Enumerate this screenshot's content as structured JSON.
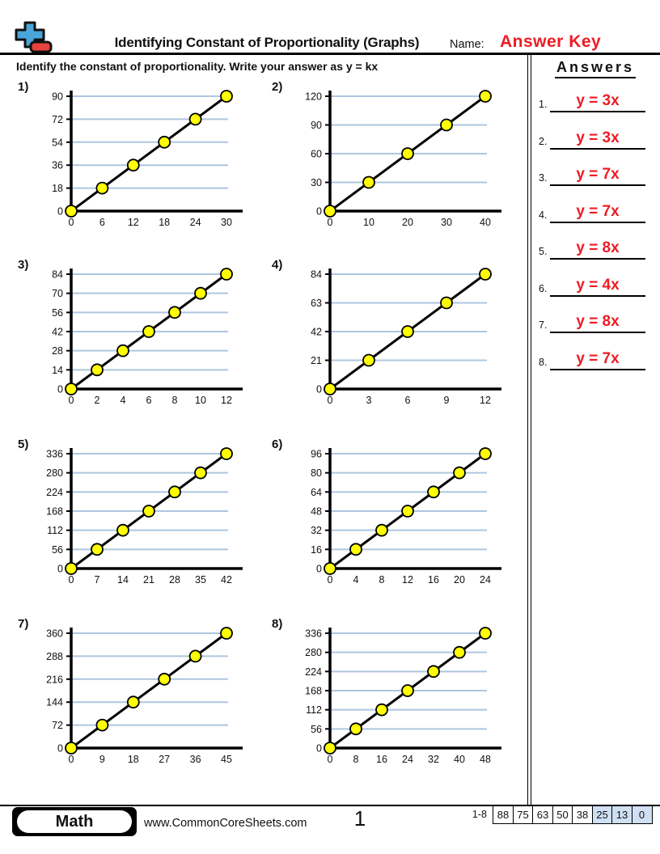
{
  "header": {
    "title": "Identifying Constant of Proportionality (Graphs)",
    "name_label": "Name:",
    "name_value": "Answer Key",
    "instruction": "Identify the constant of proportionality. Write your answer as y = kx"
  },
  "answers_panel": {
    "title": "Answers",
    "items": [
      {
        "num": "1.",
        "value": "y = 3x"
      },
      {
        "num": "2.",
        "value": "y = 3x"
      },
      {
        "num": "3.",
        "value": "y = 7x"
      },
      {
        "num": "4.",
        "value": "y = 7x"
      },
      {
        "num": "5.",
        "value": "y = 8x"
      },
      {
        "num": "6.",
        "value": "y = 4x"
      },
      {
        "num": "7.",
        "value": "y = 8x"
      },
      {
        "num": "8.",
        "value": "y = 7x"
      }
    ]
  },
  "chart_data": [
    {
      "type": "line",
      "label": "1)",
      "k": 3,
      "answer": "y = 3x",
      "x": [
        0,
        6,
        12,
        18,
        24,
        30
      ],
      "y": [
        0,
        18,
        36,
        54,
        72,
        90
      ],
      "x_ticks": [
        0,
        6,
        12,
        18,
        24,
        30
      ],
      "y_ticks": [
        0,
        18,
        36,
        54,
        72,
        90
      ],
      "xlim": [
        0,
        30
      ],
      "ylim": [
        0,
        90
      ],
      "grid": "horizontal",
      "legend": "none",
      "title": "",
      "xlabel": "",
      "ylabel": ""
    },
    {
      "type": "line",
      "label": "2)",
      "k": 3,
      "answer": "y = 3x",
      "x": [
        0,
        10,
        20,
        30,
        40
      ],
      "y": [
        0,
        30,
        60,
        90,
        120
      ],
      "x_ticks": [
        0,
        10,
        20,
        30,
        40
      ],
      "y_ticks": [
        0,
        30,
        60,
        90,
        120
      ],
      "xlim": [
        0,
        40
      ],
      "ylim": [
        0,
        120
      ],
      "grid": "horizontal",
      "legend": "none",
      "title": "",
      "xlabel": "",
      "ylabel": ""
    },
    {
      "type": "line",
      "label": "3)",
      "k": 7,
      "answer": "y = 7x",
      "x": [
        0,
        2,
        4,
        6,
        8,
        10,
        12
      ],
      "y": [
        0,
        14,
        28,
        42,
        56,
        70,
        84
      ],
      "x_ticks": [
        0,
        2,
        4,
        6,
        8,
        10,
        12
      ],
      "y_ticks": [
        0,
        14,
        28,
        42,
        56,
        70,
        84
      ],
      "xlim": [
        0,
        12
      ],
      "ylim": [
        0,
        84
      ],
      "grid": "horizontal",
      "legend": "none",
      "title": "",
      "xlabel": "",
      "ylabel": ""
    },
    {
      "type": "line",
      "label": "4)",
      "k": 7,
      "answer": "y = 7x",
      "x": [
        0,
        3,
        6,
        9,
        12
      ],
      "y": [
        0,
        21,
        42,
        63,
        84
      ],
      "x_ticks": [
        0,
        3,
        6,
        9,
        12
      ],
      "y_ticks": [
        0,
        21,
        42,
        63,
        84
      ],
      "xlim": [
        0,
        12
      ],
      "ylim": [
        0,
        84
      ],
      "grid": "horizontal",
      "legend": "none",
      "title": "",
      "xlabel": "",
      "ylabel": ""
    },
    {
      "type": "line",
      "label": "5)",
      "k": 8,
      "answer": "y = 8x",
      "x": [
        0,
        7,
        14,
        21,
        28,
        35,
        42
      ],
      "y": [
        0,
        56,
        112,
        168,
        224,
        280,
        336
      ],
      "x_ticks": [
        0,
        7,
        14,
        21,
        28,
        35,
        42
      ],
      "y_ticks": [
        0,
        56,
        112,
        168,
        224,
        280,
        336
      ],
      "xlim": [
        0,
        42
      ],
      "ylim": [
        0,
        336
      ],
      "grid": "horizontal",
      "legend": "none",
      "title": "",
      "xlabel": "",
      "ylabel": ""
    },
    {
      "type": "line",
      "label": "6)",
      "k": 4,
      "answer": "y = 4x",
      "x": [
        0,
        4,
        8,
        12,
        16,
        20,
        24
      ],
      "y": [
        0,
        16,
        32,
        48,
        64,
        80,
        96
      ],
      "x_ticks": [
        0,
        4,
        8,
        12,
        16,
        20,
        24
      ],
      "y_ticks": [
        0,
        16,
        32,
        48,
        64,
        80,
        96
      ],
      "xlim": [
        0,
        24
      ],
      "ylim": [
        0,
        96
      ],
      "grid": "horizontal",
      "legend": "none",
      "title": "",
      "xlabel": "",
      "ylabel": ""
    },
    {
      "type": "line",
      "label": "7)",
      "k": 8,
      "answer": "y = 8x",
      "x": [
        0,
        9,
        18,
        27,
        36,
        45
      ],
      "y": [
        0,
        72,
        144,
        216,
        288,
        360
      ],
      "x_ticks": [
        0,
        9,
        18,
        27,
        36,
        45
      ],
      "y_ticks": [
        0,
        72,
        144,
        216,
        288,
        360
      ],
      "xlim": [
        0,
        45
      ],
      "ylim": [
        0,
        360
      ],
      "grid": "horizontal",
      "legend": "none",
      "title": "",
      "xlabel": "",
      "ylabel": ""
    },
    {
      "type": "line",
      "label": "8)",
      "k": 7,
      "answer": "y = 7x",
      "x": [
        0,
        8,
        16,
        24,
        32,
        40,
        48
      ],
      "y": [
        0,
        56,
        112,
        168,
        224,
        280,
        336
      ],
      "x_ticks": [
        0,
        8,
        16,
        24,
        32,
        40,
        48
      ],
      "y_ticks": [
        0,
        56,
        112,
        168,
        224,
        280,
        336
      ],
      "xlim": [
        0,
        48
      ],
      "ylim": [
        0,
        336
      ],
      "grid": "horizontal",
      "legend": "none",
      "title": "",
      "xlabel": "",
      "ylabel": ""
    }
  ],
  "footer": {
    "subject_badge": "Math",
    "website": "www.CommonCoreSheets.com",
    "page_number": "1",
    "problem_range": "1-8",
    "score_cells": [
      "88",
      "75",
      "63",
      "50",
      "38",
      "25",
      "13",
      "0"
    ]
  },
  "colors": {
    "answer_red": "#ed1c24",
    "grid_blue": "#aec6e0",
    "point_yellow": "#ffff00",
    "axis_black": "#000000",
    "logo_blue": "#4aa5d8",
    "logo_red": "#e8423e",
    "score_highlight": "#cfe0f4"
  }
}
